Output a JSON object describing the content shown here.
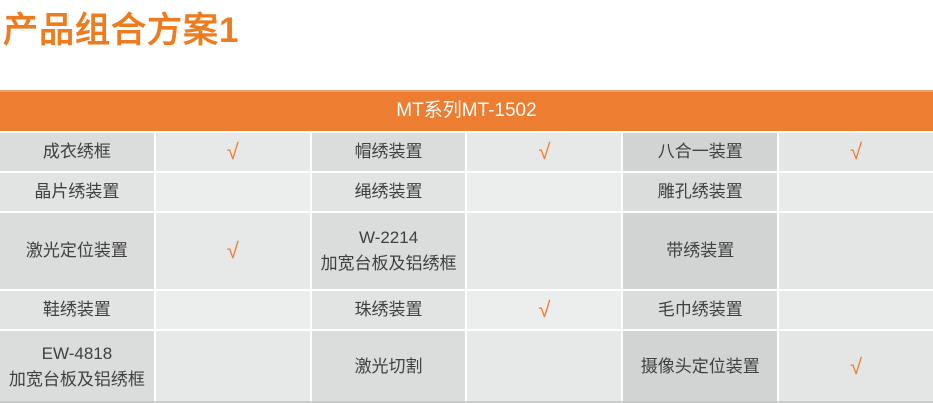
{
  "page": {
    "title": "产品组合方案1"
  },
  "colors": {
    "accent_orange": "#ED7D31",
    "check_mark_color": "#ED7D31"
  },
  "icons": {
    "check_mark": "√"
  },
  "table": {
    "header": "MT系列MT-1502",
    "rows": [
      [
        "成衣绣框",
        "√",
        "帽绣装置",
        "√",
        "八合一装置",
        "√"
      ],
      [
        "晶片绣装置",
        "",
        "绳绣装置",
        "",
        "雕孔绣装置",
        ""
      ],
      [
        "激光定位装置",
        "√",
        "W-2214\n加宽台板及铝绣框",
        "",
        "带绣装置",
        ""
      ],
      [
        "鞋绣装置",
        "",
        "珠绣装置",
        "√",
        "毛巾绣装置",
        ""
      ],
      [
        "EW-4818\n加宽台板及铝绣框",
        "",
        "激光切割",
        "",
        "摄像头定位装置",
        "√"
      ]
    ]
  }
}
